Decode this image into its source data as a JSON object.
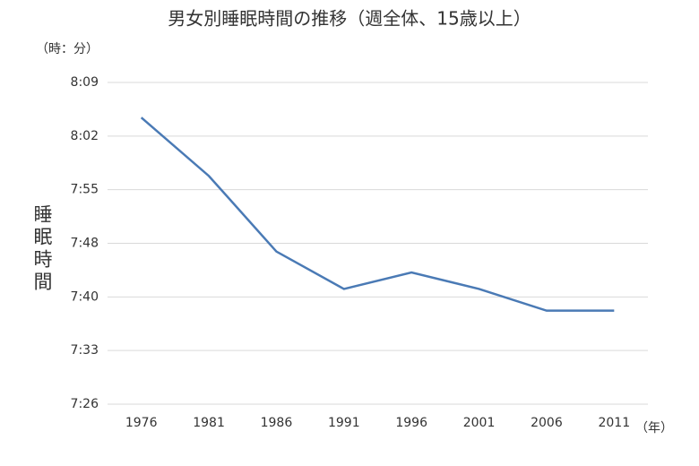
{
  "chart_data": {
    "type": "line",
    "title": "男女別睡眠時間の推移（週全体、15歳以上）",
    "y_unit": "（時：分）",
    "y_label": "睡眠時間",
    "x_unit": "（年）",
    "categories": [
      "1976",
      "1981",
      "1986",
      "1991",
      "1996",
      "2001",
      "2006",
      "2011"
    ],
    "series": [
      {
        "name": "睡眠時間",
        "color": "#4a7ab5",
        "values": [
          484.3,
          476.5,
          466.4,
          461.4,
          463.6,
          461.4,
          458.5,
          458.5
        ]
      }
    ],
    "ylim": [
      446,
      489
    ],
    "yticks": [
      {
        "value": 446,
        "label": "7:26"
      },
      {
        "value": 453.17,
        "label": "7:33"
      },
      {
        "value": 460.33,
        "label": "7:40"
      },
      {
        "value": 467.5,
        "label": "7:48"
      },
      {
        "value": 474.67,
        "label": "7:55"
      },
      {
        "value": 481.83,
        "label": "8:02"
      },
      {
        "value": 489,
        "label": "8:09"
      }
    ],
    "grid": true
  }
}
